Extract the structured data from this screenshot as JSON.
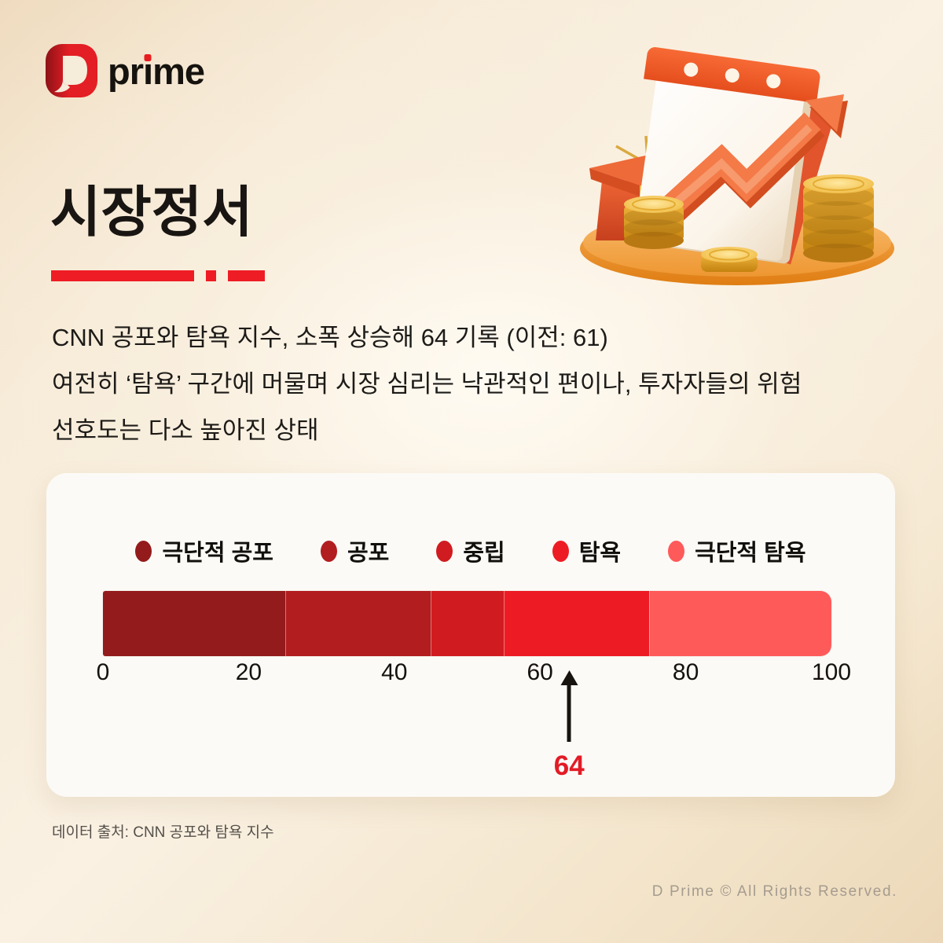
{
  "colors": {
    "accent": "#ee1c25",
    "pointer_value_color": "#e31b26",
    "logo_red": "#e31e24",
    "card_bg": "#fcfaf6"
  },
  "icons": {
    "logo_mark": "d-mark",
    "logo_i_dot": "red-square-dot",
    "illustration": "calendar-coins-growth-arrow-3d",
    "pointer": "up-arrow-marker"
  },
  "logo": {
    "text": "prime",
    "text_pre": "pr",
    "text_dotless_i": "ı",
    "text_post": "me"
  },
  "header": {
    "title": "시장정서"
  },
  "summary": {
    "lines": [
      "CNN 공포와 탐욕 지수, 소폭 상승해 64 기록 (이전: 61)",
      "여전히 ‘탐욕’ 구간에 머물며 시장 심리는 낙관적인 편이나, 투자자들의 위험",
      "선호도는 다소 높아진 상태"
    ]
  },
  "chart_data": {
    "type": "bar",
    "orientation": "horizontal",
    "title": "",
    "xlim": [
      0,
      100
    ],
    "ticks": [
      0,
      20,
      40,
      60,
      80,
      100
    ],
    "grid": false,
    "legend_position": "top",
    "segments": [
      {
        "label": "극단적 공포",
        "start": 0,
        "end": 25,
        "color": "#931b1c"
      },
      {
        "label": "공포",
        "start": 25,
        "end": 45,
        "color": "#b21d20"
      },
      {
        "label": "중립",
        "start": 45,
        "end": 55,
        "color": "#d01c21"
      },
      {
        "label": "탐욕",
        "start": 55,
        "end": 75,
        "color": "#ed1c24"
      },
      {
        "label": "극단적 탐욕",
        "start": 75,
        "end": 100,
        "color": "#ff5a5a"
      }
    ],
    "pointer": {
      "value": 64,
      "label": "64"
    }
  },
  "footer": {
    "source": "데이터 출처: CNN 공포와 탐욕 지수",
    "copyright": "D Prime © All Rights Reserved."
  }
}
